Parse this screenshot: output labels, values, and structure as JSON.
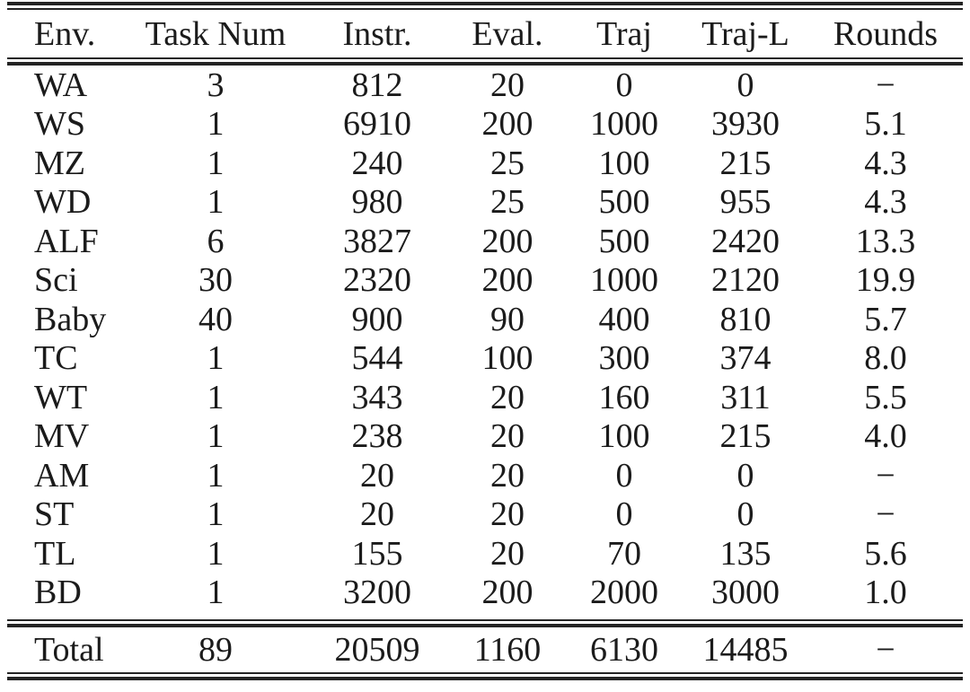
{
  "colors": {
    "background": "#ffffff",
    "text": "#1b1b1b",
    "rule": "#242424"
  },
  "table": {
    "columns": [
      "Env.",
      "Task Num",
      "Instr.",
      "Eval.",
      "Traj",
      "Traj-L",
      "Rounds"
    ],
    "rows": [
      [
        "WA",
        "3",
        "812",
        "20",
        "0",
        "0",
        "−"
      ],
      [
        "WS",
        "1",
        "6910",
        "200",
        "1000",
        "3930",
        "5.1"
      ],
      [
        "MZ",
        "1",
        "240",
        "25",
        "100",
        "215",
        "4.3"
      ],
      [
        "WD",
        "1",
        "980",
        "25",
        "500",
        "955",
        "4.3"
      ],
      [
        "ALF",
        "6",
        "3827",
        "200",
        "500",
        "2420",
        "13.3"
      ],
      [
        "Sci",
        "30",
        "2320",
        "200",
        "1000",
        "2120",
        "19.9"
      ],
      [
        "Baby",
        "40",
        "900",
        "90",
        "400",
        "810",
        "5.7"
      ],
      [
        "TC",
        "1",
        "544",
        "100",
        "300",
        "374",
        "8.0"
      ],
      [
        "WT",
        "1",
        "343",
        "20",
        "160",
        "311",
        "5.5"
      ],
      [
        "MV",
        "1",
        "238",
        "20",
        "100",
        "215",
        "4.0"
      ],
      [
        "AM",
        "1",
        "20",
        "20",
        "0",
        "0",
        "−"
      ],
      [
        "ST",
        "1",
        "20",
        "20",
        "0",
        "0",
        "−"
      ],
      [
        "TL",
        "1",
        "155",
        "20",
        "70",
        "135",
        "5.6"
      ],
      [
        "BD",
        "1",
        "3200",
        "200",
        "2000",
        "3000",
        "1.0"
      ]
    ],
    "total_row": [
      "Total",
      "89",
      "20509",
      "1160",
      "6130",
      "14485",
      "−"
    ]
  }
}
